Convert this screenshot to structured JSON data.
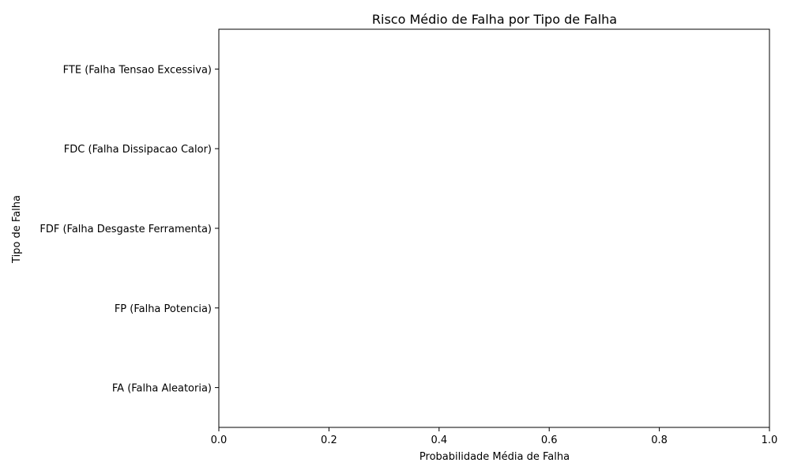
{
  "chart_data": {
    "type": "bar",
    "orientation": "horizontal",
    "title": "Risco Médio de Falha por Tipo de Falha",
    "xlabel": "Probabilidade Média de Falha",
    "ylabel": "Tipo de Falha",
    "categories": [
      "FTE (Falha Tensao Excessiva)",
      "FDC (Falha Dissipacao Calor)",
      "FDF (Falha Desgaste Ferramenta)",
      "FP (Falha Potencia)",
      "FA (Falha Aleatoria)"
    ],
    "values": [
      0,
      0,
      0,
      0,
      0
    ],
    "xlim": [
      0,
      1
    ],
    "xticks": [
      "0.0",
      "0.2",
      "0.4",
      "0.6",
      "0.8",
      "1.0"
    ],
    "grid": false,
    "bar_color": "#1f77b4"
  }
}
